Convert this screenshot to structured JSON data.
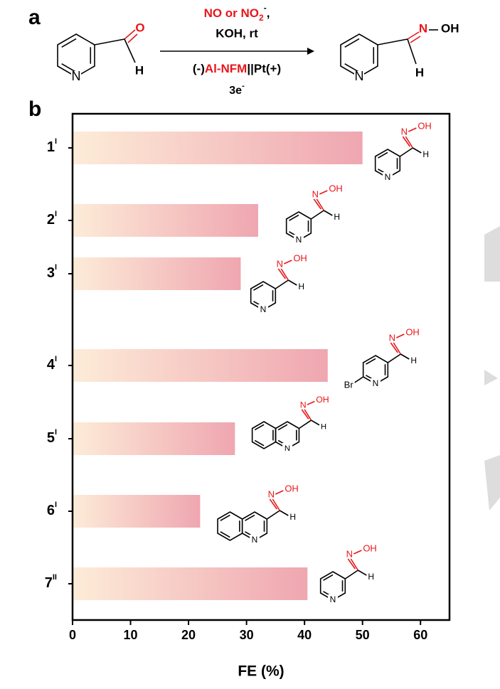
{
  "scheme": {
    "panel_label": "a",
    "reagent": {
      "text": "NO or NO",
      "sub": "2",
      "sup": "-",
      "tail": ","
    },
    "base": "KOH, rt",
    "cell": {
      "prefix": "(-)",
      "highlight": "Al-NFM",
      "suffix": "||Pt(+)"
    },
    "electrons": {
      "text": "3e",
      "sup": "-"
    },
    "reactant": {
      "ring_n": "N",
      "o": "O",
      "h": "H"
    },
    "product": {
      "ring_n": "N",
      "n": "N",
      "oh": "OH",
      "h": "H"
    }
  },
  "chart_data": {
    "type": "barh",
    "panel_label": "b",
    "categories": [
      "1",
      "2",
      "3",
      "4",
      "5",
      "6",
      "7"
    ],
    "superscripts": [
      "I",
      "I",
      "I",
      "I",
      "I",
      "I",
      "II"
    ],
    "values": [
      50,
      32,
      29,
      44,
      28,
      22,
      40.5
    ],
    "color_start": "#fdecd8",
    "color_end": "#efa6b0",
    "xlabel": "FE (%)",
    "xlim": [
      0,
      65
    ],
    "xticks": [
      0,
      10,
      20,
      30,
      40,
      50,
      60
    ],
    "structures": [
      {
        "ring_n": "N",
        "n": "N",
        "oh": "OH",
        "h": "H"
      },
      {
        "ring_n": "N",
        "n": "N",
        "oh": "OH",
        "h": "H"
      },
      {
        "ring_n": "N",
        "n": "N",
        "oh": "OH",
        "h": "H"
      },
      {
        "ring_n": "N",
        "n": "N",
        "oh": "OH",
        "h": "H",
        "br": "Br"
      },
      {
        "ring_n": "N",
        "n": "N",
        "oh": "OH",
        "h": "H"
      },
      {
        "ring_n": "N",
        "n": "N",
        "oh": "OH",
        "h": "H"
      },
      {
        "ring_n": "N",
        "n": "N",
        "oh": "OH",
        "h": "H"
      }
    ]
  }
}
